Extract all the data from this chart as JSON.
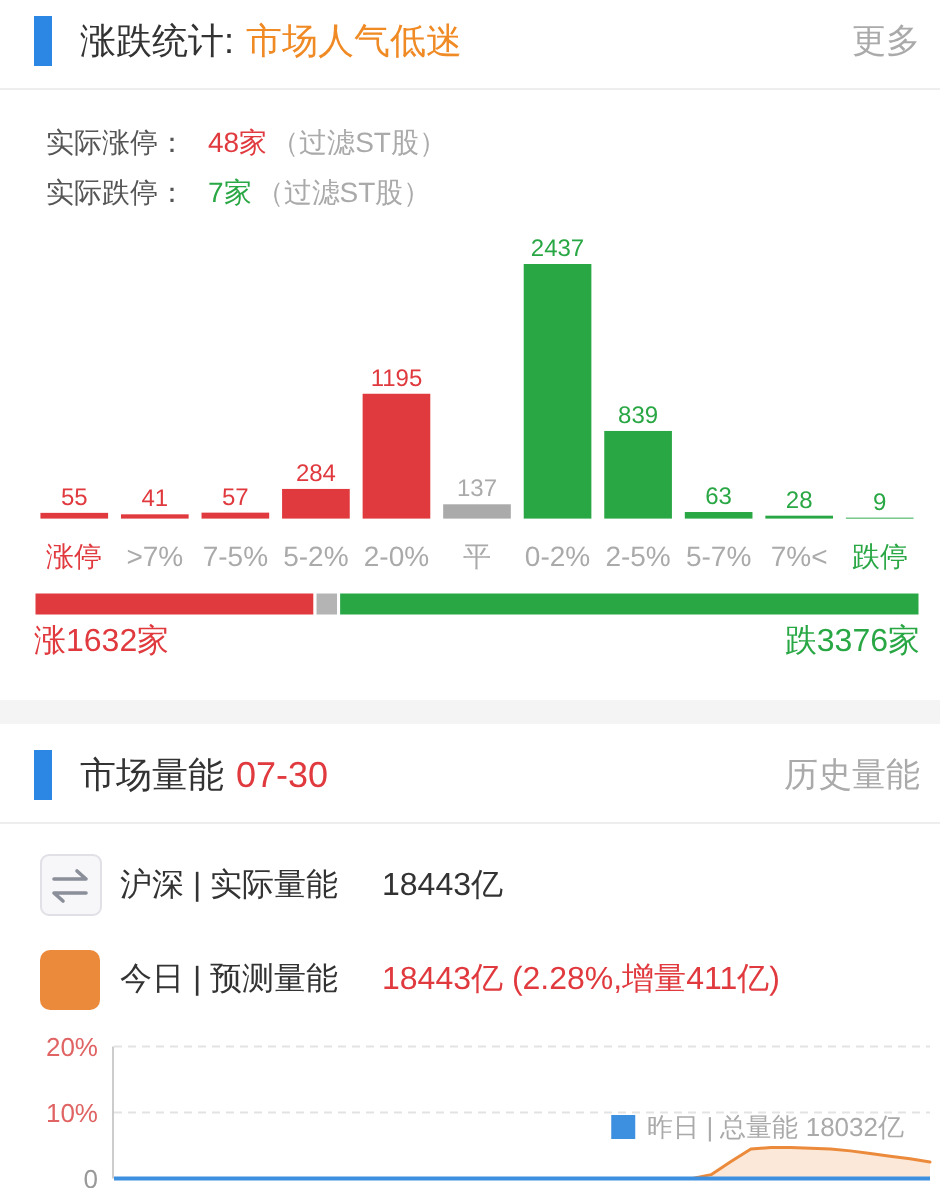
{
  "chart_data": [
    {
      "type": "bar",
      "title": "涨跌统计:",
      "subtitle": "市场人气低迷",
      "annotations": [
        "更多",
        "实际涨停：",
        "48家",
        "（过滤ST股）",
        "实际跌停：",
        "7家",
        "（过滤ST股）"
      ],
      "categories": [
        "涨停",
        ">7%",
        "7-5%",
        "5-2%",
        "2-0%",
        "平",
        "0-2%",
        "2-5%",
        "5-7%",
        "7%<",
        "跌停"
      ],
      "values": [
        55,
        41,
        57,
        284,
        1195,
        137,
        2437,
        839,
        63,
        28,
        9
      ],
      "colors": [
        "#e0393e",
        "#e0393e",
        "#e0393e",
        "#e0393e",
        "#e0393e",
        "#aaaaaa",
        "#29a744",
        "#29a744",
        "#29a744",
        "#29a744",
        "#29a744"
      ],
      "data_labels": true,
      "tick_labels": "x"
    },
    {
      "type": "bar",
      "orientation": "horizontal",
      "stacked": true,
      "categories": [
        null
      ],
      "series": [
        {
          "color": "#e0393e",
          "values": [
            1632
          ],
          "value_labels": [
            "涨1632家"
          ]
        },
        {
          "color": "#b4b4b4",
          "values": [
            137
          ]
        },
        {
          "color": "#29a744",
          "values": [
            3376
          ],
          "value_labels": [
            "跌3376家"
          ]
        }
      ],
      "tick_labels": false
    },
    {
      "type": "area",
      "title": "市场量能",
      "subtitle": "07-30",
      "annotations": [
        "历史量能",
        "沪深 | 实际量能",
        "18443亿",
        "18443亿 (2.28%,增量411亿)"
      ],
      "categories": [
        null,
        null,
        null,
        null,
        null,
        null,
        null,
        null,
        null,
        null,
        null,
        null,
        null,
        null,
        null,
        null,
        null,
        null,
        null,
        null,
        null,
        null,
        null,
        null,
        null,
        null,
        null,
        null,
        null,
        null,
        null,
        null,
        null,
        null,
        null,
        null,
        null,
        null,
        null,
        null,
        null,
        null
      ],
      "series": [
        {
          "name": "今日 | 预测量能",
          "type": "area",
          "color": "#ec8a3c",
          "values": [
            null,
            null,
            null,
            null,
            null,
            null,
            null,
            null,
            null,
            null,
            null,
            null,
            null,
            null,
            null,
            null,
            null,
            null,
            null,
            null,
            null,
            null,
            null,
            null,
            null,
            null,
            null,
            null,
            null,
            0,
            0.6,
            2.6,
            4.5,
            4.7,
            4.7,
            4.6,
            4.5,
            4.2,
            3.8,
            3.4,
            3.0,
            2.5
          ]
        },
        {
          "name": "昨日 | 总量能 18032亿",
          "type": "line",
          "color": "#3d8fe0",
          "values": [
            0,
            0,
            0,
            0,
            0,
            0,
            0,
            0,
            0,
            0,
            0,
            0,
            0,
            0,
            0,
            0,
            0,
            0,
            0,
            0,
            0,
            0,
            0,
            0,
            0,
            0,
            0,
            0,
            0,
            0,
            0,
            0,
            0,
            0,
            0,
            0,
            0,
            0,
            0,
            0,
            0,
            0
          ]
        }
      ],
      "ylim": [
        0,
        20
      ],
      "yticks": [
        0,
        {
          "value": 10,
          "label": "10%"
        },
        {
          "value": 20,
          "label": "20%"
        }
      ],
      "grid": "y",
      "legend": "top left",
      "tick_labels": "y"
    }
  ]
}
